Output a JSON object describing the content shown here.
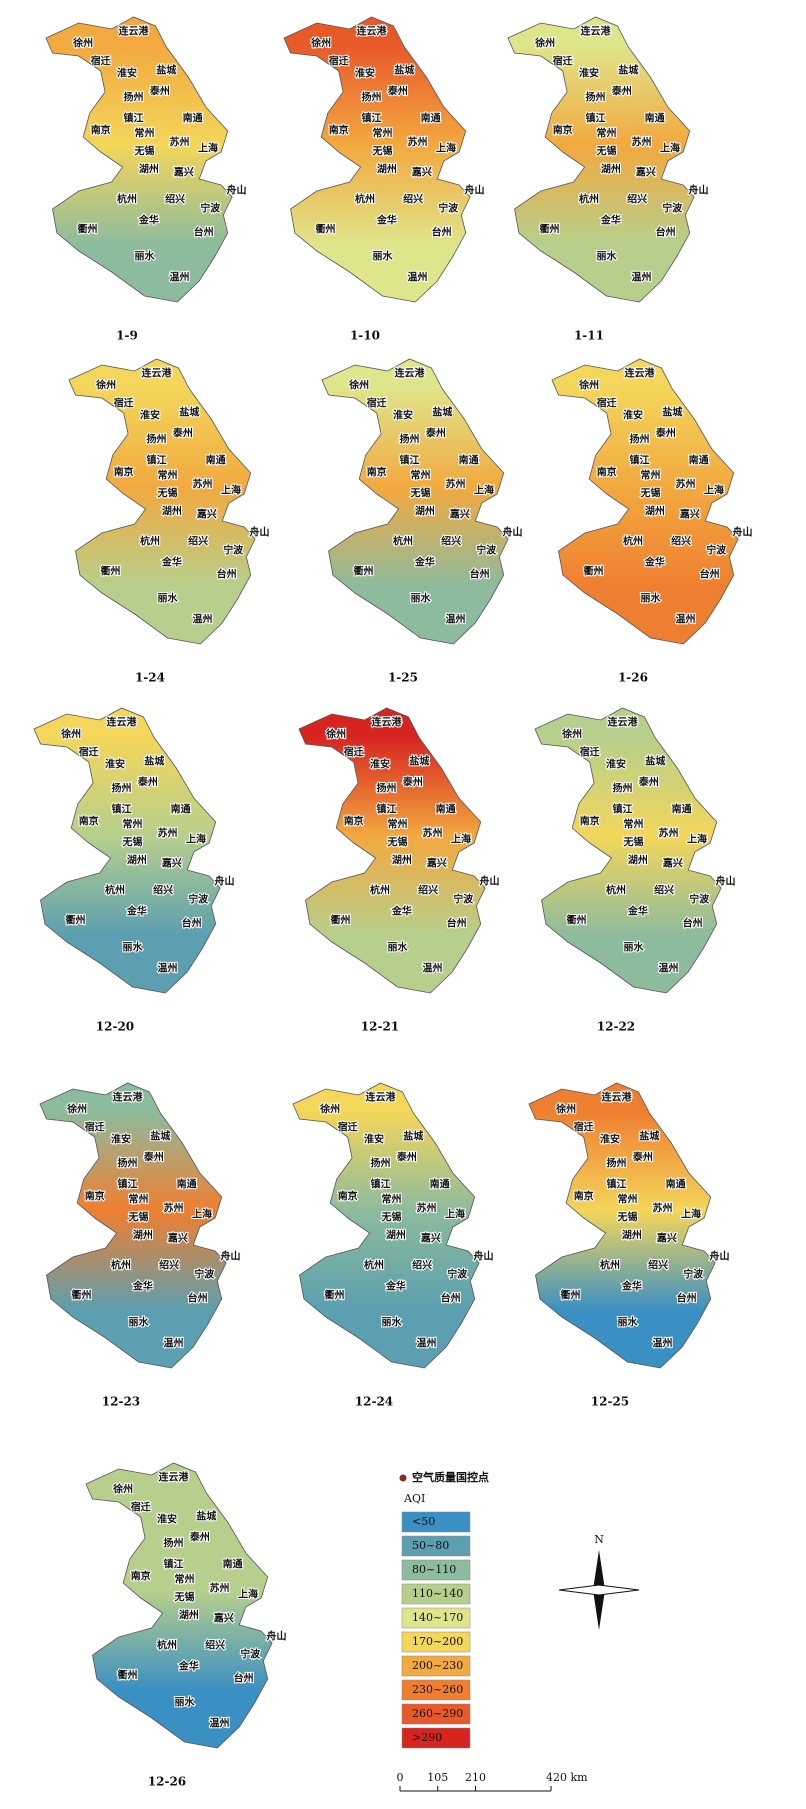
{
  "panels": [
    {
      "date": "1-9",
      "colors": [
        "#f2a93f",
        "#f3d65a",
        "#8dbb9d"
      ]
    },
    {
      "date": "1-10",
      "colors": [
        "#e8592a",
        "#f2a93f",
        "#dfe58a"
      ]
    },
    {
      "date": "1-11",
      "colors": [
        "#dfe58a",
        "#f2a93f",
        "#b6cf8c"
      ]
    },
    {
      "date": "1-24",
      "colors": [
        "#f3d65a",
        "#f2a93f",
        "#b6cf8c"
      ]
    },
    {
      "date": "1-25",
      "colors": [
        "#dfe58a",
        "#f2a93f",
        "#8dbb9d"
      ]
    },
    {
      "date": "1-26",
      "colors": [
        "#f3d65a",
        "#f2a93f",
        "#ef7f30"
      ]
    },
    {
      "date": "12-20",
      "colors": [
        "#f3d65a",
        "#b6cf8c",
        "#5b9fb0"
      ]
    },
    {
      "date": "12-21",
      "colors": [
        "#d7241f",
        "#f2a93f",
        "#b6cf8c"
      ]
    },
    {
      "date": "12-22",
      "colors": [
        "#b6cf8c",
        "#f3d65a",
        "#8dbb9d"
      ]
    },
    {
      "date": "12-23",
      "colors": [
        "#8dbb9d",
        "#ef7f30",
        "#5b9fb0"
      ]
    },
    {
      "date": "12-24",
      "colors": [
        "#f3d65a",
        "#8dbb9d",
        "#5b9fb0"
      ]
    },
    {
      "date": "12-25",
      "colors": [
        "#ef7f30",
        "#f3d65a",
        "#3a8fc3"
      ]
    },
    {
      "date": "12-26",
      "colors": [
        "#b6cf8c",
        "#b6cf8c",
        "#3a8fc3"
      ]
    }
  ],
  "cities": [
    "徐州",
    "连云港",
    "宿迁",
    "淮安",
    "盐城",
    "泰州",
    "扬州",
    "南通",
    "镇江",
    "南京",
    "常州",
    "苏州",
    "无锡",
    "上海",
    "湖州",
    "嘉兴",
    "舟山",
    "杭州",
    "绍兴",
    "宁波",
    "金华",
    "衢州",
    "台州",
    "丽水",
    "温州"
  ],
  "legend": {
    "site_label": "空气质量国控点",
    "title": "AQI",
    "classes": [
      {
        "label": "<50",
        "color": "#3a8fc3"
      },
      {
        "label": "50~80",
        "color": "#5b9fb0"
      },
      {
        "label": "80~110",
        "color": "#8dbb9d"
      },
      {
        "label": "110~140",
        "color": "#b6cf8c"
      },
      {
        "label": "140~170",
        "color": "#dfe58a"
      },
      {
        "label": "170~200",
        "color": "#f3d65a"
      },
      {
        "label": "200~230",
        "color": "#f2a93f"
      },
      {
        "label": "230~260",
        "color": "#ef7f30"
      },
      {
        "label": "260~290",
        "color": "#e8592a"
      },
      {
        "label": ">290",
        "color": "#d7241f"
      }
    ]
  },
  "north": "N",
  "scale_bar": {
    "ticks": [
      0,
      105,
      210,
      {
        "value": 420,
        "label": "420 km"
      }
    ]
  }
}
